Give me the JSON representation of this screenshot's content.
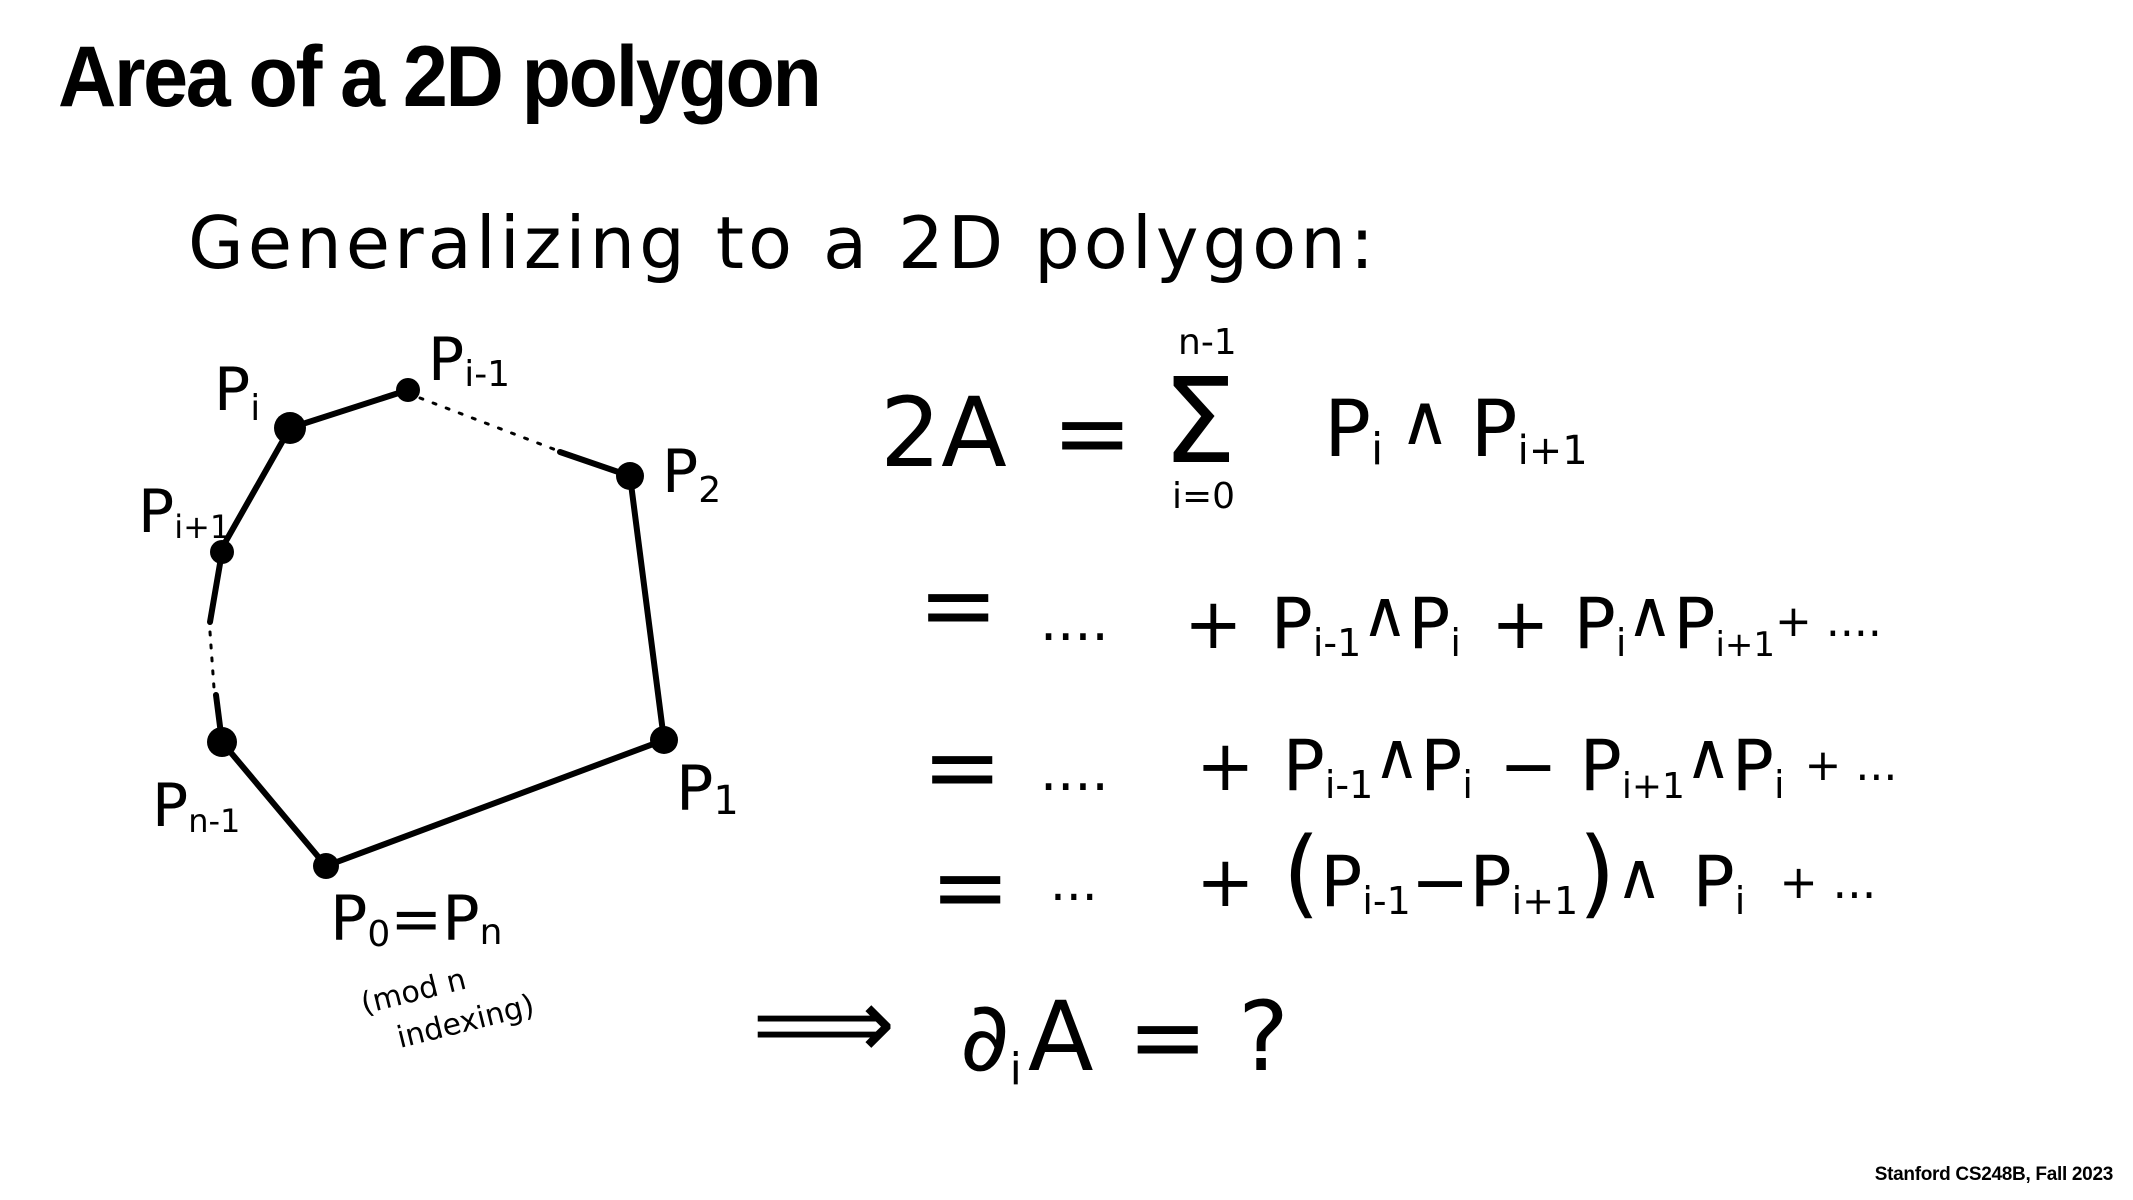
{
  "title": "Area of a 2D polygon",
  "footer": "Stanford CS248B, Fall 2023",
  "heading": "Generalizing to a 2D polygon:",
  "polygon": {
    "vertex_labels": {
      "p_i": "P",
      "p_i_sub": "i",
      "p_im1": "P",
      "p_im1_sub": "i-1",
      "p_2": "P",
      "p_2_sub": "2",
      "p_ip1": "P",
      "p_ip1_sub": "i+1",
      "p_1": "P",
      "p_1_sub": "1",
      "p_nm1": "P",
      "p_nm1_sub": "n-1",
      "p_0": "P",
      "p_0_sub": "0",
      "p_0_eq": "=",
      "p_n": "P",
      "p_n_sub": "n"
    },
    "note_line1": "(mod n",
    "note_line2": "indexing)"
  },
  "equations": {
    "line1": {
      "lhs": "2A",
      "eq": "=",
      "sum_symbol": "Σ",
      "sum_upper": "n-1",
      "sum_lower": "i=0",
      "term": "P",
      "term_sub": "i",
      "wedge": "∧",
      "term2": "P",
      "term2_sub": "i+1"
    },
    "line2": {
      "eq": "=",
      "lead": "....",
      "plus1": "+",
      "a": "P",
      "a_sub": "i-1",
      "w1": "∧",
      "b": "P",
      "b_sub": "i",
      "plus2": "+",
      "c": "P",
      "c_sub": "i",
      "w2": "∧",
      "d": "P",
      "d_sub": "i+1",
      "tail": "+ ...."
    },
    "line3": {
      "eq": "=",
      "lead": "....",
      "plus1": "+",
      "a": "P",
      "a_sub": "i-1",
      "w1": "∧",
      "b": "P",
      "b_sub": "i",
      "minus": "−",
      "c": "P",
      "c_sub": "i+1",
      "w2": "∧",
      "d": "P",
      "d_sub": "i",
      "tail": "+ ..."
    },
    "line4": {
      "eq": "=",
      "lead": "...",
      "plus1": "+",
      "open": "(",
      "a": "P",
      "a_sub": "i-1",
      "minus": "−",
      "b": "P",
      "b_sub": "i+1",
      "close": ")",
      "w1": "∧",
      "c": "P",
      "c_sub": "i",
      "tail": "+ ..."
    },
    "line5": {
      "implies": "⟹",
      "partial": "∂",
      "partial_sub": "i",
      "var": "A",
      "eq": "=",
      "q": "?"
    }
  }
}
